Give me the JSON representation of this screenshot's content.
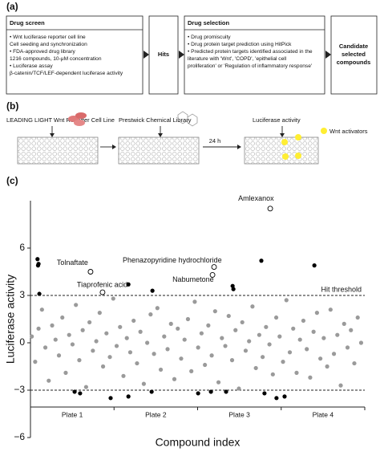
{
  "panel_a": {
    "label": "(a)",
    "screen": {
      "title": "Drug screen",
      "items": [
        "• Wnt luciferase reporter cell line",
        "Cell seeding and synchronization",
        "• FDA-approved drug library",
        "1216 compounds, 10-μM concentration",
        "• Luciferase assay",
        "β-catenin/TCF/LEF-dependent luciferase activity"
      ]
    },
    "hits": "Hits",
    "selection": {
      "title": "Drug selection",
      "items": [
        "• Drug promiscuity",
        "• Drug protein target prediction using HitPick",
        "• Predicted protein targets identified associated in the",
        "literature with 'Wnt', 'COPD', 'epithelial cell",
        "proliferation' or 'Regulation of inflammatory response'"
      ]
    },
    "candidate": [
      "Candidate",
      "selected",
      "compounds"
    ]
  },
  "panel_b": {
    "label": "(b)",
    "cell_line": "LEADING LIGHT Wnt Reporter Cell Line",
    "library": "Prestwick Chemical Library",
    "readout": "Luciferase activity",
    "time": "24 h",
    "legend": "Wnt activators"
  },
  "chart_data": {
    "type": "scatter",
    "panel_label": "(c)",
    "y_label": "Luciferase activity",
    "x_label": "Compound index",
    "xlim": [
      0,
      1280
    ],
    "ylim": [
      -6,
      9
    ],
    "yticks": [
      {
        "value": -6,
        "label": "−6"
      },
      {
        "value": -3,
        "label": "−3"
      },
      0,
      3,
      6
    ],
    "x_groups": [
      "Plate 1",
      "Plate 2",
      "Plate 3",
      "Plate 4"
    ],
    "thresholds": [
      3,
      -3
    ],
    "threshold_label": "Hit threshold",
    "series": [
      {
        "color": "#9a9a9a",
        "style": "filled",
        "x": [
          5,
          18,
          31,
          44,
          57,
          70,
          83,
          96,
          109,
          122,
          135,
          148,
          161,
          174,
          187,
          200,
          213,
          226,
          239,
          252,
          265,
          278,
          291,
          304,
          317,
          330,
          343,
          356,
          369,
          382,
          395,
          408,
          421,
          434,
          447,
          460,
          473,
          486,
          499,
          512,
          525,
          538,
          551,
          564,
          577,
          590,
          603,
          616,
          629,
          642,
          655,
          668,
          681,
          694,
          707,
          720,
          733,
          746,
          759,
          772,
          785,
          798,
          811,
          824,
          837,
          850,
          863,
          876,
          889,
          902,
          915,
          928,
          941,
          954,
          967,
          980,
          993,
          1006,
          1019,
          1032,
          1045,
          1058,
          1071,
          1084,
          1097,
          1110,
          1123,
          1136,
          1149,
          1162,
          1175,
          1188,
          1201,
          1214,
          1227,
          1240,
          1253,
          1266
        ],
        "values": [
          0.4,
          -1.2,
          0.9,
          2.1,
          -0.3,
          -2.4,
          1.1,
          0.2,
          -0.8,
          1.6,
          -1.9,
          0.5,
          -0.1,
          2.4,
          -1.1,
          0.8,
          -2.8,
          1.3,
          -0.5,
          0.1,
          1.9,
          -1.5,
          0.6,
          -0.9,
          2.8,
          -0.2,
          1.0,
          -2.1,
          0.3,
          -0.6,
          1.4,
          -1.3,
          0.7,
          -2.6,
          0.0,
          1.8,
          -0.7,
          2.2,
          -1.7,
          0.4,
          -0.4,
          1.2,
          -2.3,
          0.9,
          -1.0,
          0.2,
          1.5,
          -1.8,
          2.6,
          -0.3,
          0.6,
          -1.4,
          1.1,
          -0.8,
          2.0,
          -2.5,
          0.3,
          -0.2,
          1.7,
          -1.1,
          0.8,
          -2.9,
          1.3,
          -0.5,
          0.1,
          2.3,
          -1.6,
          0.5,
          -0.9,
          1.0,
          -0.1,
          -2.0,
          1.6,
          0.4,
          -1.2,
          2.7,
          -0.6,
          0.9,
          -1.9,
          0.2,
          1.4,
          -0.4,
          -2.2,
          0.7,
          1.9,
          -1.0,
          0.3,
          -1.5,
          2.1,
          -0.7,
          0.5,
          -2.7,
          1.2,
          -0.3,
          0.8,
          -1.3,
          1.6,
          0.0
        ]
      },
      {
        "color": "#000000",
        "style": "filled",
        "x": [
          27,
          29,
          31,
          34,
          375,
          467,
          774,
          777,
          884,
          1087,
          169,
          190,
          307,
          375,
          464,
          642,
          691,
          749,
          896,
          942,
          973
        ],
        "values": [
          5.3,
          4.9,
          5.0,
          3.1,
          3.7,
          3.3,
          3.6,
          3.4,
          5.2,
          4.9,
          -3.1,
          -3.2,
          -3.5,
          -3.4,
          -3.1,
          -3.2,
          -3.1,
          -3.1,
          -3.2,
          -3.5,
          -3.4
        ]
      },
      {
        "color": "#000000",
        "style": "open",
        "x": [
          918,
          230,
          703,
          697,
          276
        ],
        "values": [
          8.5,
          4.5,
          4.8,
          4.3,
          3.2
        ],
        "labels": [
          "Amlexanox",
          "Tolnaftate",
          "Phenazopyridine hydrochloride",
          "Nabumetone",
          "Tiaprofenic acid"
        ]
      }
    ]
  }
}
